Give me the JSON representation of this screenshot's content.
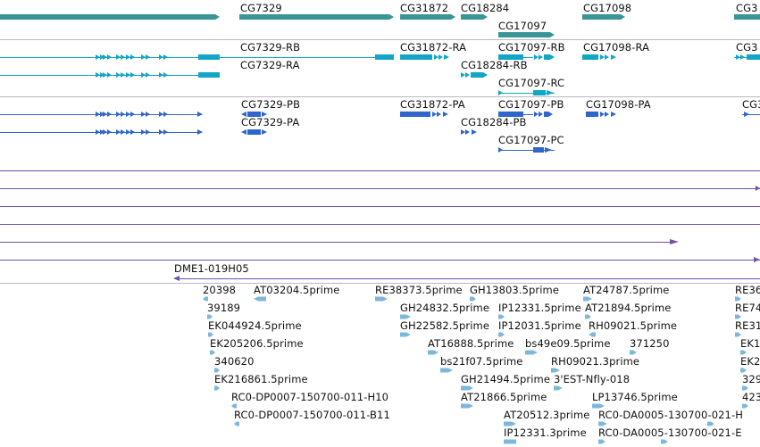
{
  "colors": {
    "gene": "#3a9696",
    "transcript": "#12a6c4",
    "cds": "#2f66cc",
    "alignment": "#7050a8",
    "est": "#7db8da",
    "separator": "#b8b8c0"
  },
  "genes": {
    "labels": [
      "CG7329",
      "CG31872",
      "CG18284",
      "CG17097",
      "CG17098",
      "CG3"
    ]
  },
  "transcripts": {
    "labels": [
      "CG7329-RB",
      "CG31872-RA",
      "CG17097-RB",
      "CG17098-RA",
      "CG3",
      "CG7329-RA",
      "CG18284-RB",
      "CG17097-RC"
    ]
  },
  "cds": {
    "labels": [
      "CG7329-PB",
      "CG31872-PA",
      "CG17097-PB",
      "CG17098-PA",
      "CG3",
      "CG7329-PA",
      "CG18284-PB",
      "CG17097-PC"
    ]
  },
  "alignments": {
    "labels": [
      "DME1-019H05"
    ]
  },
  "ests": {
    "labels": [
      "20398",
      "AT03204.5prime",
      "RE38373.5prime",
      "GH13803.5prime",
      "AT24787.5prime",
      "RE36",
      "39189",
      "GH24832.5prime",
      "IP12331.5prime",
      "AT21894.5prime",
      "RE74",
      "EK044924.5prime",
      "GH22582.5prime",
      "IP12031.5prime",
      "RH09021.5prime",
      "RE31",
      "EK205206.5prime",
      "AT16888.5prime",
      "bs49e09.5prime",
      "371250",
      "EK1",
      "340620",
      "bs21f07.5prime",
      "RH09021.3prime",
      "EK2",
      "EK216861.5prime",
      "GH21494.5prime",
      "3'EST-Nfly-018",
      "329",
      "RC0-DP0007-150700-011-H10",
      "AT21866.5prime",
      "LP13746.5prime",
      "423",
      "RC0-DP0007-150700-011-B11",
      "AT20512.3prime",
      "RC0-DA0005-130700-021-H",
      "IP12331.3prime",
      "RC0-DA0005-130700-021-E"
    ]
  }
}
